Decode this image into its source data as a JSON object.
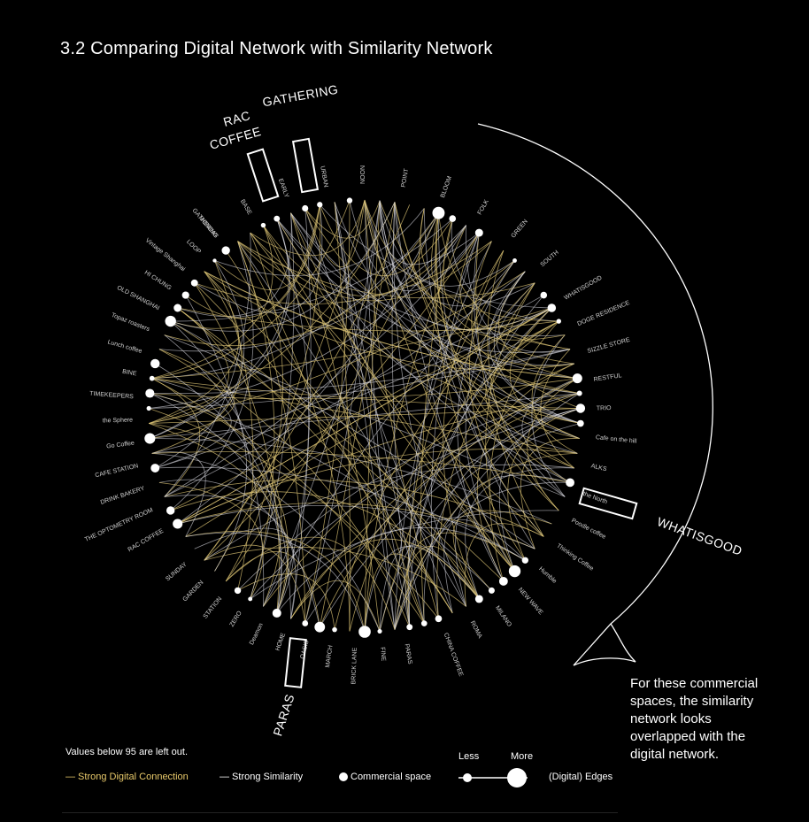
{
  "title": "3.2 Comparing Digital Network with Similarity Network",
  "callouts": {
    "rac": "RAC",
    "coffee": "COFFEE",
    "gathering": "GATHERING",
    "whatisgood": "WHATISGOOD",
    "paras": "PARAS"
  },
  "note": "For these commercial spaces, the similarity network looks overlapped with the digital network.",
  "legend": {
    "threshold": "Values below 95 are left out.",
    "digital": "— Strong Digital Connection",
    "similarity": "— Strong Similarity",
    "commercial": "Commercial space",
    "less": "Less",
    "more": "More",
    "edges": "(Digital) Edges"
  },
  "colors": {
    "background": "#000000",
    "digital_edge": "#d9c173",
    "similarity_edge": "#e6e6ee",
    "node": "#ffffff",
    "label": "#cfcfcf"
  },
  "ring_labels_left": [
    "RAC COFFEE",
    "THE OPTOMETRY ROOM",
    "DRINK BAKERY",
    "CAFE STATION",
    "Go Coffee",
    "the Sphere",
    "TIMEKEEPERS",
    "BINE",
    "Lunch coffee",
    "Topaz roasters",
    "OLD SHANGHAI",
    "HI CHUNG",
    "Vintage Shanghai",
    "LOOP",
    "MONDAY"
  ],
  "ring_labels_right": [
    "WHATISGOOD",
    "DOGE RESIDENCE",
    "SIZZLE STORE",
    "RESTFUL",
    "TRIO",
    "Cafe on the hill",
    "ALKS",
    "the North",
    "Poodle coffee",
    "Thinking Coffee",
    "Humble",
    "NEW WAVE",
    "MILANO",
    "ROMA",
    "CHINA COFFEE"
  ],
  "ring_labels_bottom": [
    "PARAS",
    "FINE",
    "BRICK LANE",
    "MARCH",
    "OASIS",
    "HOME",
    "Deamon",
    "ZERO",
    "STATION",
    "GARDEN",
    "SUNDAY"
  ],
  "ring_labels_top": [
    "GATHERING",
    "BASE",
    "EARLY",
    "URBAN",
    "NOON",
    "POINT",
    "BLOOM",
    "FOLK",
    "GREEN",
    "SOUTH"
  ]
}
